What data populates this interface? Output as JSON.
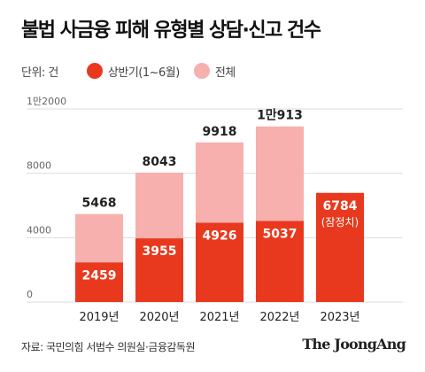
{
  "title": "불법 사금융 피해 유형별 상담·신고 건수",
  "unit_label": "단위: 건",
  "legend": {
    "first_half": "상반기(1~6월)",
    "total": "전체"
  },
  "colors": {
    "first_half": "#e8391e",
    "total": "#f7b0ad",
    "axis_text": "#666666",
    "grid": "#dddddd"
  },
  "source": "자료: 국민의힘 서범수 의원실·금융감독원",
  "publisher": "The JoongAng",
  "chart_data": {
    "type": "bar",
    "categories": [
      "2019년",
      "2020년",
      "2021년",
      "2022년",
      "2023년"
    ],
    "series": [
      {
        "name": "상반기(1~6월)",
        "values": [
          2459,
          3955,
          4926,
          5037,
          6784
        ],
        "labels": [
          "2459",
          "3955",
          "4926",
          "5037",
          "6784"
        ],
        "color": "#e8391e"
      },
      {
        "name": "전체",
        "values": [
          5468,
          8043,
          9918,
          10913,
          null
        ],
        "labels": [
          "5468",
          "8043",
          "9918",
          "1만913",
          ""
        ],
        "color": "#f7b0ad"
      }
    ],
    "note_2023": "(잠정치)",
    "ylim": [
      0,
      12000
    ],
    "yticks": [
      0,
      4000,
      8000,
      12000
    ],
    "ytick_labels": [
      "0",
      "4000",
      "8000",
      "1만2000"
    ],
    "grid": true
  }
}
